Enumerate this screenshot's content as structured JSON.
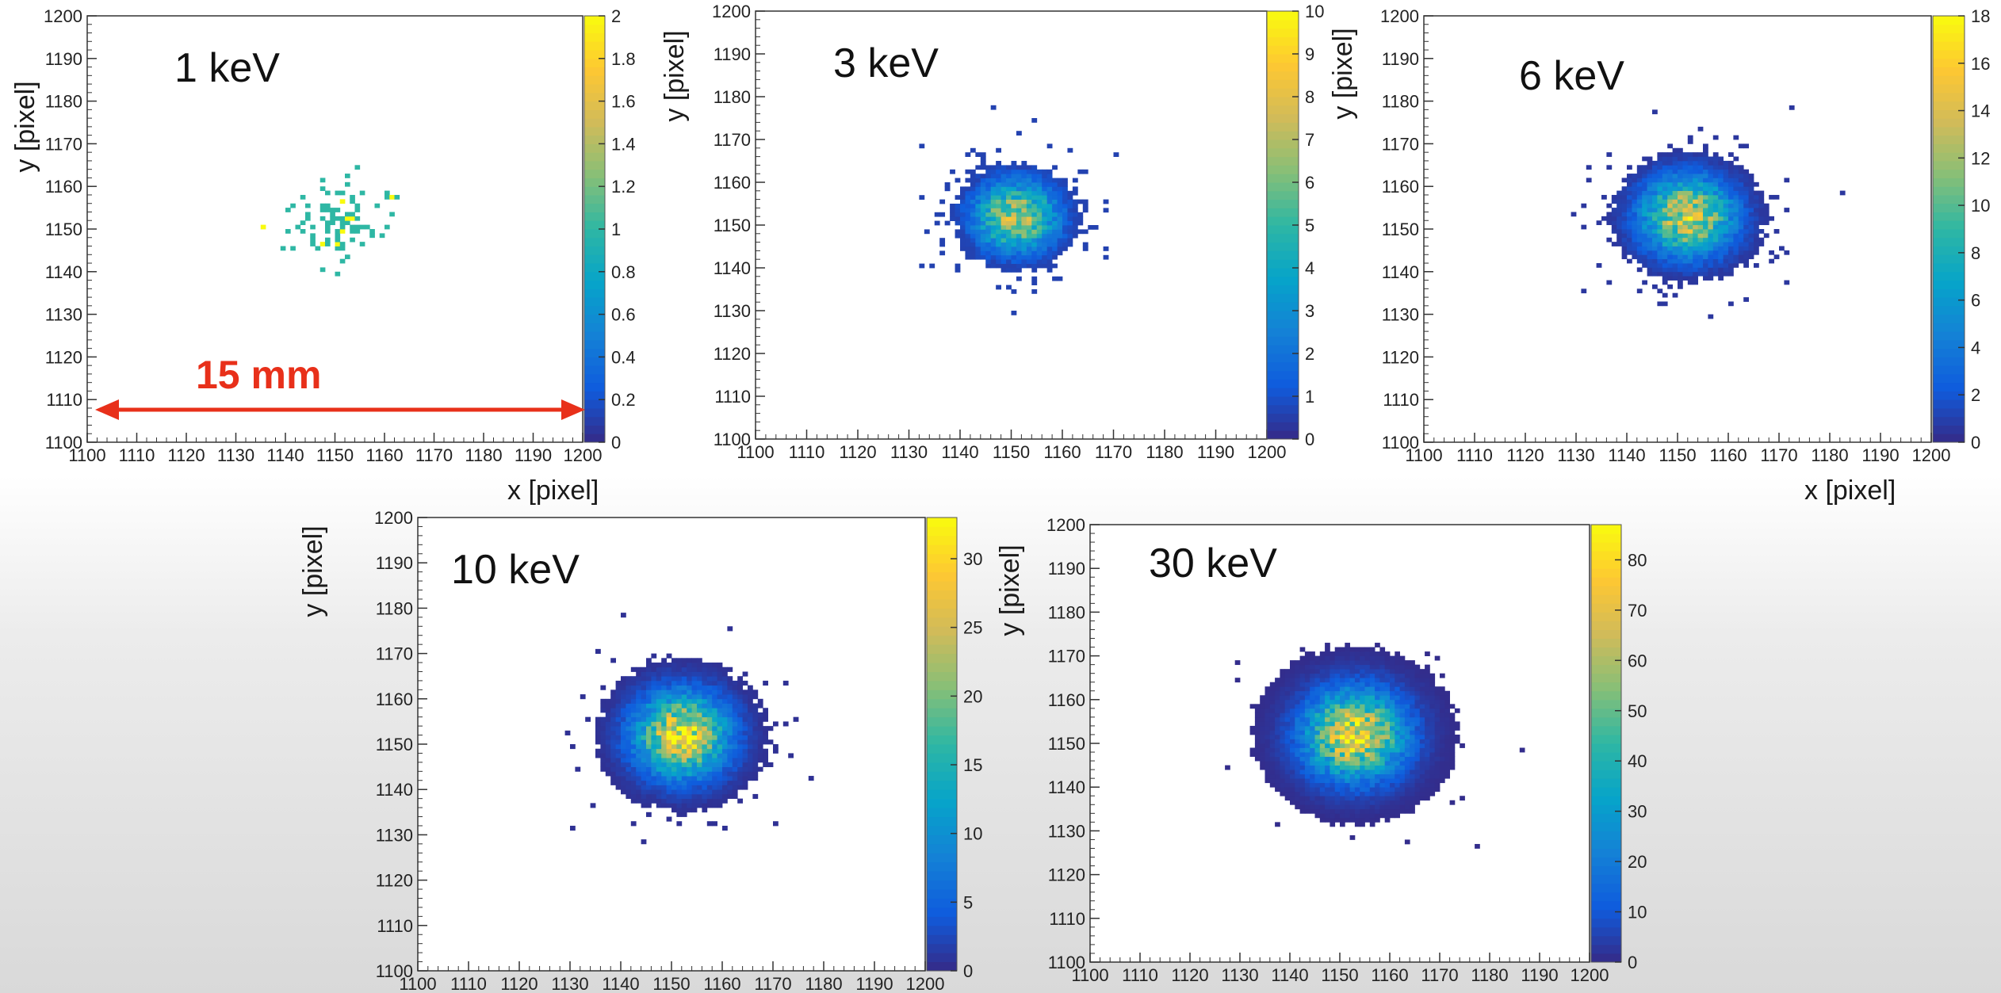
{
  "chart_data": [
    {
      "type": "heatmap",
      "title": "1 keV",
      "xlabel": "x [pixel]",
      "ylabel": "y [pixel]",
      "xlim": [
        1100,
        1200
      ],
      "ylim": [
        1100,
        1200
      ],
      "zlim": [
        0,
        2
      ],
      "x_ticks": [
        1100,
        1110,
        1120,
        1130,
        1140,
        1150,
        1160,
        1170,
        1180,
        1190,
        1200
      ],
      "y_ticks": [
        1100,
        1110,
        1120,
        1130,
        1140,
        1150,
        1160,
        1170,
        1180,
        1190,
        1200
      ],
      "z_ticks": [
        "0",
        "0.2",
        "0.4",
        "0.6",
        "0.8",
        "1",
        "1.2",
        "1.4",
        "1.6",
        "1.8",
        "2"
      ],
      "cluster": {
        "center": [
          1150,
          1152
        ],
        "sigma": 5.5,
        "peak": 2,
        "sparse": true
      }
    },
    {
      "type": "heatmap",
      "title": "3 keV",
      "xlabel": "",
      "ylabel": "y [pixel]",
      "xlim": [
        1100,
        1200
      ],
      "ylim": [
        1100,
        1200
      ],
      "zlim": [
        0,
        10
      ],
      "x_ticks": [
        1100,
        1110,
        1120,
        1130,
        1140,
        1150,
        1160,
        1170,
        1180,
        1190,
        1200
      ],
      "y_ticks": [
        1100,
        1110,
        1120,
        1130,
        1140,
        1150,
        1160,
        1170,
        1180,
        1190,
        1200
      ],
      "z_ticks": [
        "0",
        "1",
        "2",
        "3",
        "4",
        "5",
        "6",
        "7",
        "8",
        "9",
        "10"
      ],
      "cluster": {
        "center": [
          1151,
          1152
        ],
        "sigma": 5.5,
        "peak": 7
      }
    },
    {
      "type": "heatmap",
      "title": "6 keV",
      "xlabel": "x [pixel]",
      "ylabel": "y [pixel]",
      "xlim": [
        1100,
        1200
      ],
      "ylim": [
        1100,
        1200
      ],
      "zlim": [
        0,
        18
      ],
      "x_ticks": [
        1100,
        1110,
        1120,
        1130,
        1140,
        1150,
        1160,
        1170,
        1180,
        1190,
        1200
      ],
      "y_ticks": [
        1100,
        1110,
        1120,
        1130,
        1140,
        1150,
        1160,
        1170,
        1180,
        1190,
        1200
      ],
      "z_ticks": [
        "0",
        "2",
        "4",
        "6",
        "8",
        "10",
        "12",
        "14",
        "16",
        "18"
      ],
      "cluster": {
        "center": [
          1152,
          1153
        ],
        "sigma": 6,
        "peak": 14
      }
    },
    {
      "type": "heatmap",
      "title": "10 keV",
      "xlabel": "",
      "ylabel": "y [pixel]",
      "xlim": [
        1100,
        1200
      ],
      "ylim": [
        1100,
        1200
      ],
      "zlim": [
        0,
        33
      ],
      "x_ticks": [
        1100,
        1110,
        1120,
        1130,
        1140,
        1150,
        1160,
        1170,
        1180,
        1190,
        1200
      ],
      "y_ticks": [
        1100,
        1110,
        1120,
        1130,
        1140,
        1150,
        1160,
        1170,
        1180,
        1190,
        1200
      ],
      "z_ticks": [
        "0",
        "5",
        "10",
        "15",
        "20",
        "25",
        "30"
      ],
      "cluster": {
        "center": [
          1152,
          1152
        ],
        "sigma": 6,
        "peak": 28
      }
    },
    {
      "type": "heatmap",
      "title": "30 keV",
      "xlabel": "",
      "ylabel": "y [pixel]",
      "xlim": [
        1100,
        1200
      ],
      "ylim": [
        1100,
        1200
      ],
      "zlim": [
        0,
        87
      ],
      "x_ticks": [
        1100,
        1110,
        1120,
        1130,
        1140,
        1150,
        1160,
        1170,
        1180,
        1190,
        1200
      ],
      "y_ticks": [
        1100,
        1110,
        1120,
        1130,
        1140,
        1150,
        1160,
        1170,
        1180,
        1190,
        1200
      ],
      "z_ticks": [
        "0",
        "10",
        "20",
        "30",
        "40",
        "50",
        "60",
        "70",
        "80"
      ],
      "cluster": {
        "center": [
          1153,
          1152
        ],
        "sigma": 6.5,
        "peak": 75
      }
    }
  ],
  "annotation": {
    "scale_label": "15 mm",
    "color": "#e8301a"
  },
  "colors": {
    "colormap": [
      "#352a87",
      "#0f5cdd",
      "#1481d6",
      "#06a4ca",
      "#2eb7a4",
      "#87bf77",
      "#d1bb59",
      "#fec832",
      "#f9fb0e"
    ]
  }
}
